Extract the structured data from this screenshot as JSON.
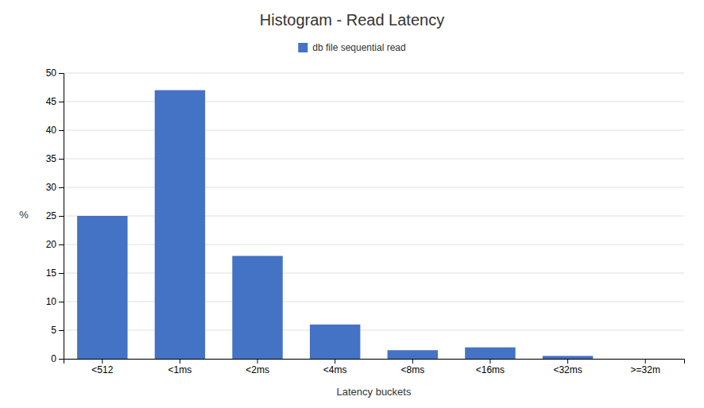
{
  "chart_data": {
    "type": "bar",
    "title": "Histogram - Read Latency",
    "xlabel": "Latency buckets",
    "ylabel": "%",
    "categories": [
      "<512",
      "<1ms",
      "<2ms",
      "<4ms",
      "<8ms",
      "<16ms",
      "<32ms",
      ">=32m"
    ],
    "series": [
      {
        "name": "db file sequential read",
        "color": "#4472C4",
        "values": [
          25,
          47,
          18,
          6,
          1.5,
          2,
          0.5,
          0
        ]
      }
    ],
    "ylim": [
      0,
      50
    ],
    "yticks": [
      0,
      5,
      10,
      15,
      20,
      25,
      30,
      35,
      40,
      45,
      50
    ],
    "grid": true,
    "legend": "top"
  }
}
